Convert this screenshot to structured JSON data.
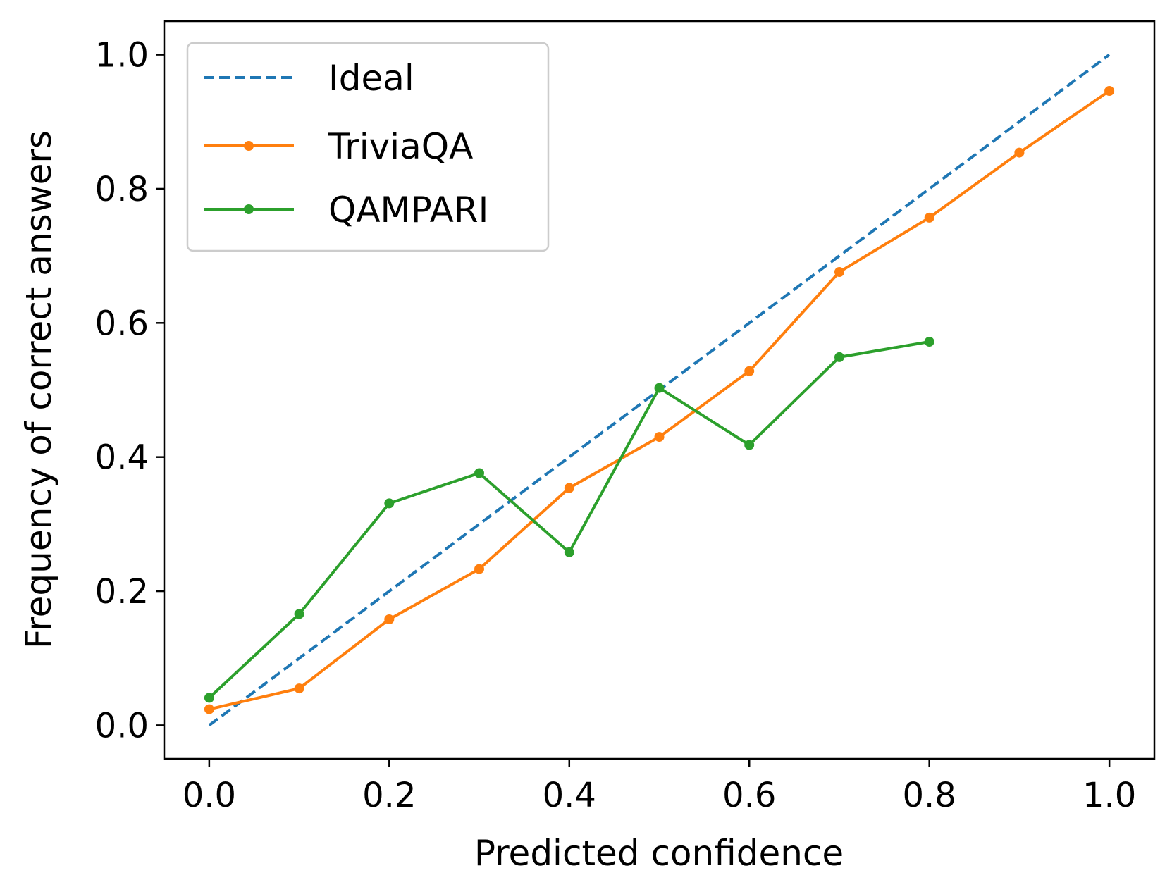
{
  "chart_data": {
    "type": "line",
    "xlabel": "Predicted confidence",
    "ylabel": "Frequency of correct answers",
    "xlim": [
      -0.05,
      1.05
    ],
    "ylim": [
      -0.05,
      1.05
    ],
    "xticks": [
      "0.0",
      "0.2",
      "0.4",
      "0.6",
      "0.8",
      "1.0"
    ],
    "yticks": [
      "0.0",
      "0.2",
      "0.4",
      "0.6",
      "0.8",
      "1.0"
    ],
    "grid": false,
    "legend_position": "top-left",
    "series": [
      {
        "name": "Ideal",
        "style": "dashed",
        "markers": false,
        "color": "#1f77b4",
        "x": [
          0.0,
          1.0
        ],
        "y": [
          0.0,
          1.0
        ]
      },
      {
        "name": "TriviaQA",
        "style": "solid",
        "markers": true,
        "color": "#ff7f0e",
        "x": [
          0.0,
          0.1,
          0.2,
          0.3,
          0.4,
          0.5,
          0.6,
          0.7,
          0.8,
          0.9,
          1.0
        ],
        "y": [
          0.024,
          0.055,
          0.158,
          0.233,
          0.354,
          0.43,
          0.528,
          0.676,
          0.757,
          0.854,
          0.946
        ]
      },
      {
        "name": "QAMPARI",
        "style": "solid",
        "markers": true,
        "color": "#2ca02c",
        "x": [
          0.0,
          0.1,
          0.2,
          0.3,
          0.4,
          0.5,
          0.6,
          0.7,
          0.8
        ],
        "y": [
          0.041,
          0.166,
          0.331,
          0.376,
          0.258,
          0.503,
          0.418,
          0.549,
          0.572
        ]
      }
    ]
  }
}
